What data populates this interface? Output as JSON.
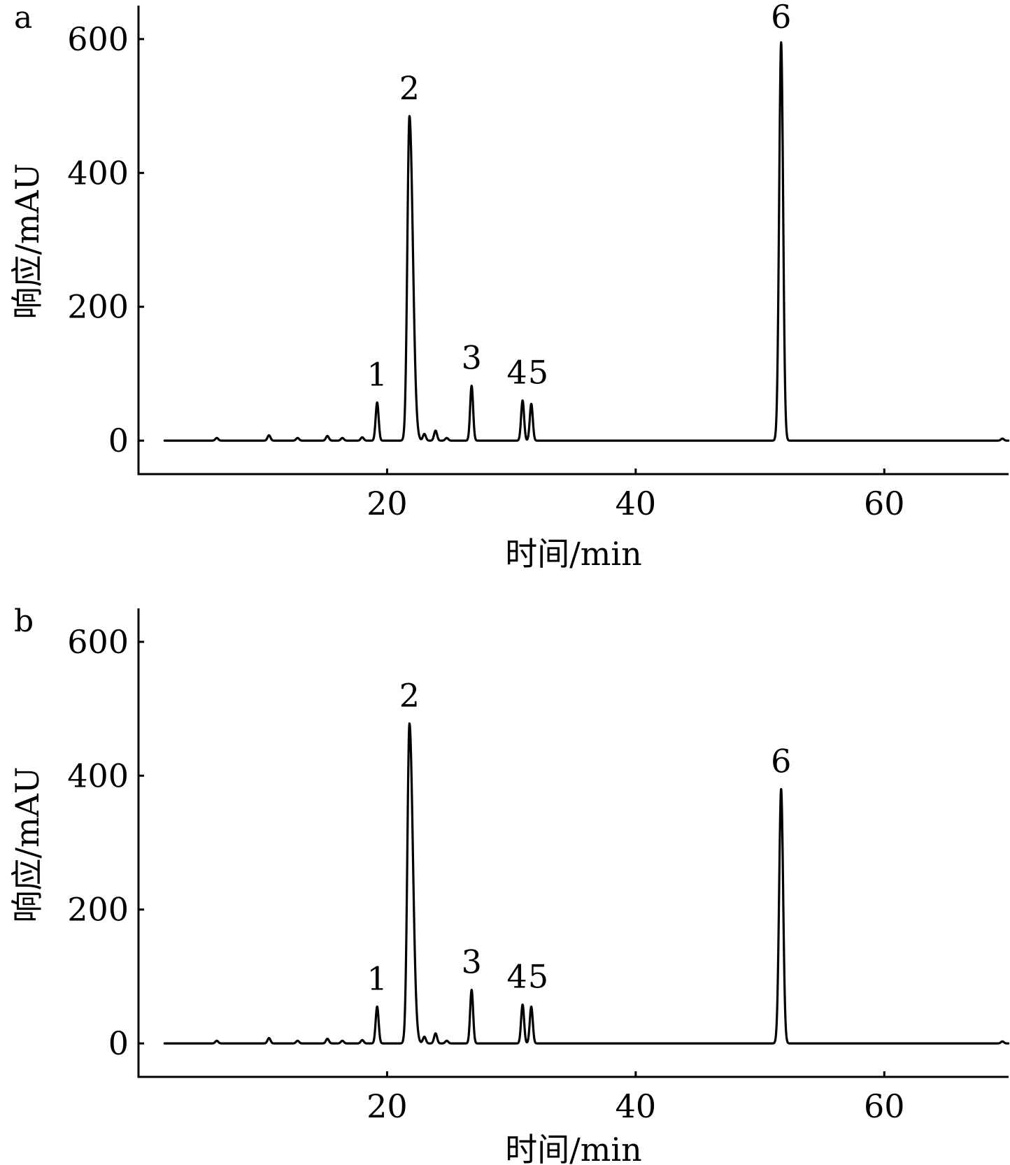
{
  "chart_data": [
    {
      "type": "line",
      "panel_label": "a",
      "xlabel": "时间/min",
      "ylabel": "响应/mAU",
      "xlim": [
        0,
        70
      ],
      "ylim": [
        -50,
        650
      ],
      "xticks": [
        20,
        40,
        60
      ],
      "yticks": [
        0,
        200,
        400,
        600
      ],
      "grid": false,
      "peaks": [
        {
          "label": "1",
          "x": 19.2,
          "y": 57
        },
        {
          "label": "2",
          "x": 21.8,
          "y": 485
        },
        {
          "label": "3",
          "x": 26.8,
          "y": 82
        },
        {
          "label": "4",
          "x": 30.9,
          "y": 60
        },
        {
          "label": "5",
          "x": 31.6,
          "y": 55
        },
        {
          "label": "6",
          "x": 51.7,
          "y": 595
        }
      ],
      "minor_peaks": [
        {
          "x": 6.3,
          "y": 4
        },
        {
          "x": 10.5,
          "y": 8
        },
        {
          "x": 12.8,
          "y": 4
        },
        {
          "x": 15.2,
          "y": 7
        },
        {
          "x": 16.4,
          "y": 4
        },
        {
          "x": 18.0,
          "y": 5
        },
        {
          "x": 23.0,
          "y": 10
        },
        {
          "x": 23.9,
          "y": 15
        },
        {
          "x": 24.8,
          "y": 4
        },
        {
          "x": 69.5,
          "y": 3
        }
      ]
    },
    {
      "type": "line",
      "panel_label": "b",
      "xlabel": "时间/min",
      "ylabel": "响应/mAU",
      "xlim": [
        0,
        70
      ],
      "ylim": [
        -50,
        650
      ],
      "xticks": [
        20,
        40,
        60
      ],
      "yticks": [
        0,
        200,
        400,
        600
      ],
      "grid": false,
      "peaks": [
        {
          "label": "1",
          "x": 19.2,
          "y": 55
        },
        {
          "label": "2",
          "x": 21.8,
          "y": 478
        },
        {
          "label": "3",
          "x": 26.8,
          "y": 80
        },
        {
          "label": "4",
          "x": 30.9,
          "y": 58
        },
        {
          "label": "5",
          "x": 31.6,
          "y": 55
        },
        {
          "label": "6",
          "x": 51.7,
          "y": 380
        }
      ],
      "minor_peaks": [
        {
          "x": 6.3,
          "y": 4
        },
        {
          "x": 10.5,
          "y": 8
        },
        {
          "x": 12.8,
          "y": 4
        },
        {
          "x": 15.2,
          "y": 7
        },
        {
          "x": 16.4,
          "y": 4
        },
        {
          "x": 18.0,
          "y": 5
        },
        {
          "x": 23.0,
          "y": 10
        },
        {
          "x": 23.9,
          "y": 15
        },
        {
          "x": 24.8,
          "y": 4
        },
        {
          "x": 69.5,
          "y": 3
        }
      ]
    }
  ]
}
